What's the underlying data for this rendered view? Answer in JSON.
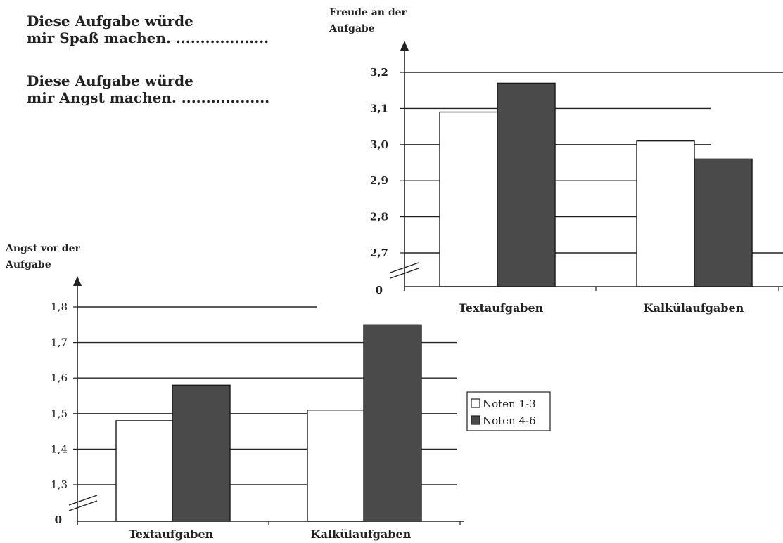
{
  "statements": [
    {
      "line1": "Diese Aufgabe würde",
      "line2": "mir Spaß machen. ..................."
    },
    {
      "line1": "Diese Aufgabe würde",
      "line2": "mir Angst machen. .................."
    }
  ],
  "legend": [
    {
      "label": "Noten 1-3",
      "color": "#ffffff"
    },
    {
      "label": "Noten 4-6",
      "color": "#4a4a4a"
    }
  ],
  "chart_data": [
    {
      "id": "freude",
      "type": "bar",
      "ylabel_line1": "Freude an der",
      "ylabel_line2": "Aufgabe",
      "categories": [
        "Textaufgaben",
        "Kalkülaufgaben"
      ],
      "series": [
        {
          "name": "Noten 1-3",
          "values": [
            3.09,
            3.01
          ]
        },
        {
          "name": "Noten 4-6",
          "values": [
            3.17,
            2.96
          ]
        }
      ],
      "yticks": [
        "3,2",
        "3,1",
        "3,0",
        "2,9",
        "2,8",
        "2,7"
      ],
      "ytick_values": [
        3.2,
        3.1,
        3.0,
        2.9,
        2.8,
        2.7
      ],
      "zero_label": "0",
      "ylim": [
        2.7,
        3.2
      ],
      "axis_break": true,
      "grid": true,
      "colors": [
        "#ffffff",
        "#4a4a4a"
      ]
    },
    {
      "id": "angst",
      "type": "bar",
      "ylabel_line1": "Angst vor der",
      "ylabel_line2": "Aufgabe",
      "categories": [
        "Textaufgaben",
        "Kalkülaufgaben"
      ],
      "series": [
        {
          "name": "Noten 1-3",
          "values": [
            1.48,
            1.51
          ]
        },
        {
          "name": "Noten 4-6",
          "values": [
            1.58,
            1.75
          ]
        }
      ],
      "yticks": [
        "1,8",
        "1,7",
        "1,6",
        "1,5",
        "1,4",
        "1,3"
      ],
      "ytick_values": [
        1.8,
        1.7,
        1.6,
        1.5,
        1.4,
        1.3
      ],
      "zero_label": "0",
      "ylim": [
        1.3,
        1.8
      ],
      "axis_break": true,
      "grid": true,
      "colors": [
        "#ffffff",
        "#4a4a4a"
      ]
    }
  ]
}
